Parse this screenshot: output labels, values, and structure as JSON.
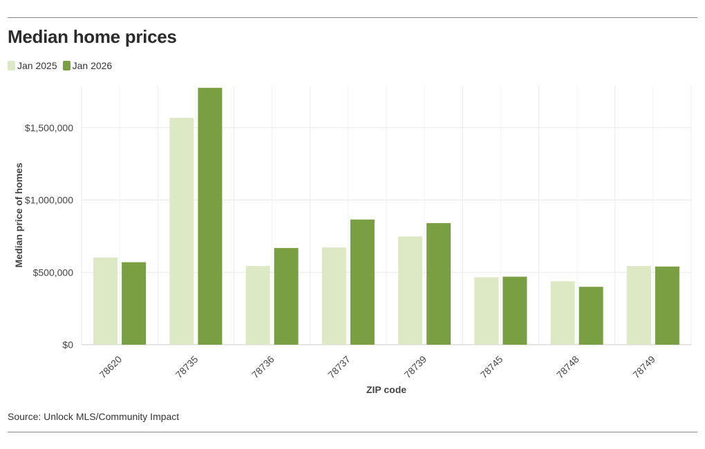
{
  "chart_data": {
    "type": "bar",
    "title": "Median home prices",
    "xlabel": "ZIP code",
    "ylabel": "Median price of homes",
    "categories": [
      "78620",
      "78735",
      "78736",
      "78737",
      "78739",
      "78745",
      "78748",
      "78749"
    ],
    "series": [
      {
        "name": "Jan 2025",
        "color": "#dde8c4",
        "values": [
          602000,
          1568000,
          544000,
          672000,
          748000,
          466000,
          438000,
          544000
        ]
      },
      {
        "name": "Jan 2026",
        "color": "#7a9f42",
        "values": [
          570000,
          1775000,
          668000,
          865000,
          840000,
          470000,
          400000,
          540000
        ]
      }
    ],
    "yticks": [
      0,
      500000,
      1000000,
      1500000
    ],
    "ytick_labels": [
      "$0",
      "$500,000",
      "$1,000,000",
      "$1,500,000"
    ],
    "ylim": [
      0,
      1800000
    ],
    "grid": true,
    "legend_position": "top-left"
  },
  "source": "Source: Unlock MLS/Community Impact"
}
